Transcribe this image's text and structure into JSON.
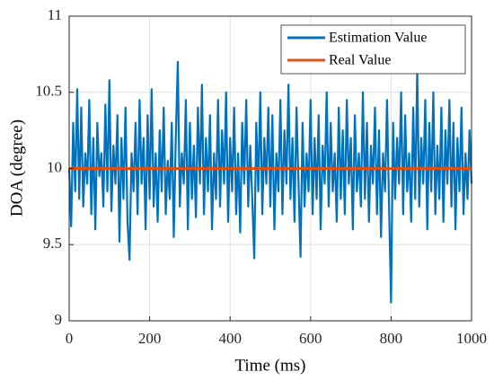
{
  "chart_data": {
    "type": "line",
    "xlabel": "Time (ms)",
    "ylabel": "DOA (degree)",
    "xlim": [
      0,
      1000
    ],
    "xticks": [
      0,
      200,
      400,
      600,
      800,
      1000
    ],
    "ylim": [
      9,
      11
    ],
    "yticks": [
      9,
      9.5,
      10,
      10.5,
      11
    ],
    "grid": true,
    "legend": "upper right",
    "x": [
      0,
      5,
      10,
      15,
      20,
      25,
      30,
      35,
      40,
      45,
      50,
      55,
      60,
      65,
      70,
      75,
      80,
      85,
      90,
      95,
      100,
      105,
      110,
      115,
      120,
      125,
      130,
      135,
      140,
      145,
      150,
      155,
      160,
      165,
      170,
      175,
      180,
      185,
      190,
      195,
      200,
      205,
      210,
      215,
      220,
      225,
      230,
      235,
      240,
      245,
      250,
      255,
      260,
      265,
      270,
      275,
      280,
      285,
      290,
      295,
      300,
      305,
      310,
      315,
      320,
      325,
      330,
      335,
      340,
      345,
      350,
      355,
      360,
      365,
      370,
      375,
      380,
      385,
      390,
      395,
      400,
      405,
      410,
      415,
      420,
      425,
      430,
      435,
      440,
      445,
      450,
      455,
      460,
      465,
      470,
      475,
      480,
      485,
      490,
      495,
      500,
      505,
      510,
      515,
      520,
      525,
      530,
      535,
      540,
      545,
      550,
      555,
      560,
      565,
      570,
      575,
      580,
      585,
      590,
      595,
      600,
      605,
      610,
      615,
      620,
      625,
      630,
      635,
      640,
      645,
      650,
      655,
      660,
      665,
      670,
      675,
      680,
      685,
      690,
      695,
      700,
      705,
      710,
      715,
      720,
      725,
      730,
      735,
      740,
      745,
      750,
      755,
      760,
      765,
      770,
      775,
      780,
      785,
      790,
      795,
      800,
      805,
      810,
      815,
      820,
      825,
      830,
      835,
      840,
      845,
      850,
      855,
      860,
      865,
      870,
      875,
      880,
      885,
      890,
      895,
      900,
      905,
      910,
      915,
      920,
      925,
      930,
      935,
      940,
      945,
      950,
      955,
      960,
      965,
      970,
      975,
      980,
      985,
      990,
      995,
      1000
    ],
    "series": [
      {
        "name": "Estimation Value",
        "color": "#0072bd",
        "values": [
          10.0,
          9.62,
          10.3,
          9.85,
          10.52,
          9.8,
          10.4,
          9.75,
          10.1,
          9.9,
          10.45,
          9.7,
          10.2,
          9.6,
          10.3,
          9.95,
          10.1,
          9.75,
          10.42,
          9.85,
          10.58,
          9.72,
          10.15,
          9.9,
          10.35,
          9.52,
          10.2,
          9.8,
          10.4,
          9.65,
          9.4,
          10.1,
          9.85,
          10.3,
          9.7,
          10.45,
          9.9,
          10.2,
          9.6,
          10.35,
          9.8,
          10.52,
          9.75,
          10.1,
          9.65,
          10.25,
          9.85,
          10.4,
          9.7,
          10.05,
          9.8,
          10.3,
          9.55,
          10.2,
          10.7,
          9.75,
          10.1,
          9.9,
          10.45,
          9.6,
          10.3,
          9.8,
          10.15,
          9.68,
          10.4,
          9.9,
          10.55,
          9.7,
          10.2,
          9.85,
          10.35,
          9.6,
          10.1,
          9.8,
          10.45,
          9.75,
          10.25,
          9.9,
          10.5,
          9.65,
          10.2,
          9.85,
          10.4,
          9.7,
          10.1,
          9.58,
          10.3,
          9.9,
          10.45,
          9.75,
          10.15,
          9.8,
          9.41,
          10.3,
          9.85,
          10.5,
          9.7,
          10.2,
          9.9,
          10.4,
          9.75,
          10.35,
          9.6,
          10.1,
          9.85,
          10.45,
          9.7,
          10.25,
          9.9,
          10.55,
          9.8,
          10.2,
          9.65,
          10.4,
          9.9,
          9.42,
          10.3,
          9.75,
          10.1,
          9.85,
          10.45,
          9.7,
          10.2,
          9.8,
          10.35,
          9.6,
          10.15,
          9.9,
          10.5,
          9.75,
          10.3,
          9.85,
          10.1,
          9.65,
          10.4,
          9.8,
          10.25,
          9.7,
          10.45,
          9.9,
          10.2,
          9.6,
          10.35,
          9.85,
          10.1,
          9.75,
          10.5,
          9.8,
          10.3,
          9.65,
          10.15,
          9.9,
          10.4,
          9.7,
          10.25,
          9.55,
          10.1,
          9.85,
          10.45,
          9.75,
          9.12,
          10.3,
          9.8,
          10.2,
          9.9,
          10.5,
          9.7,
          10.35,
          9.85,
          10.1,
          9.65,
          10.4,
          9.8,
          10.65,
          9.75,
          10.2,
          9.9,
          10.45,
          9.6,
          10.3,
          9.85,
          10.5,
          9.7,
          10.15,
          9.8,
          10.4,
          9.65,
          10.25,
          9.9,
          10.45,
          9.75,
          10.3,
          9.6,
          10.2,
          9.85,
          10.4,
          9.7,
          10.1,
          9.8,
          10.25,
          9.9
        ]
      },
      {
        "name": "Real Value",
        "color": "#d95319",
        "x": [
          0,
          1000
        ],
        "values": [
          10,
          10
        ]
      }
    ]
  }
}
